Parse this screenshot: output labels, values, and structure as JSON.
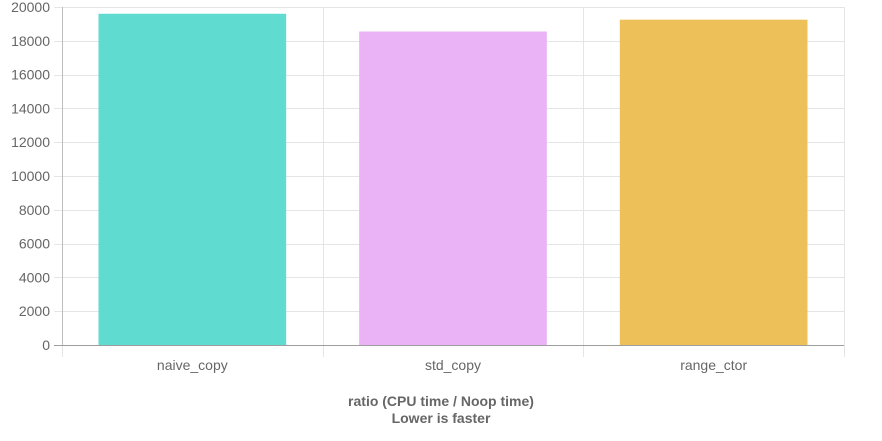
{
  "chart_data": {
    "type": "bar",
    "categories": [
      "naive_copy",
      "std_copy",
      "range_ctor"
    ],
    "values": [
      19600,
      18550,
      19250
    ],
    "colors": [
      "#5fdbd0",
      "#e9b3f5",
      "#edc05a"
    ],
    "title": "",
    "xlabel": [
      "ratio (CPU time / Noop time)",
      "Lower is faster"
    ],
    "ylabel": "",
    "ylim": [
      0,
      20000
    ],
    "yticks": [
      0,
      2000,
      4000,
      6000,
      8000,
      10000,
      12000,
      14000,
      16000,
      18000,
      20000
    ],
    "grid": true,
    "legend": "none"
  }
}
